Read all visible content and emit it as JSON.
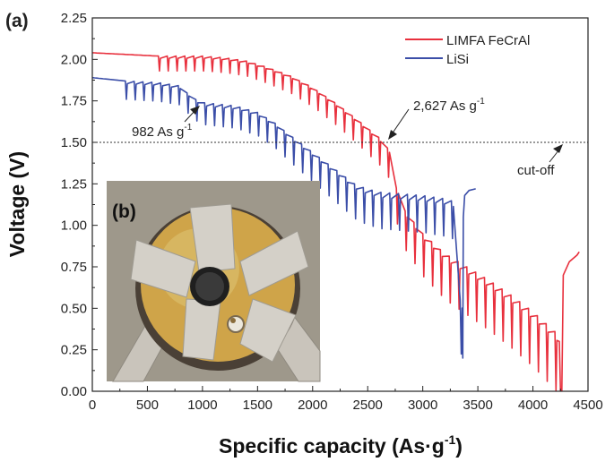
{
  "panel_labels": {
    "a": "(a)",
    "b": "(b)"
  },
  "annotations": {
    "cutoff": "cut-off",
    "lisi_capacity": "982 As g",
    "lisi_capacity_sup": "-1",
    "limfa_capacity": "2,627 As g",
    "limfa_capacity_sup": "-1"
  },
  "inset": {
    "tone": "#a9a295",
    "plate": "#cfa449",
    "mesh": "#d4d0c8"
  },
  "chart_data": {
    "type": "line",
    "title": "",
    "xlabel": "Specific capacity (As·g",
    "xlabel_sup": "-1",
    "xlabel_close": ")",
    "ylabel": "Voltage (V)",
    "xlim": [
      0,
      4500
    ],
    "ylim": [
      0,
      2.25
    ],
    "xticks": [
      "0",
      "500",
      "1000",
      "1500",
      "2000",
      "2500",
      "3000",
      "3500",
      "4000",
      "4500"
    ],
    "yticks": [
      "0.00",
      "0.25",
      "0.50",
      "0.75",
      "1.00",
      "1.25",
      "1.50",
      "1.75",
      "2.00",
      "2.25"
    ],
    "cutoff_voltage": 1.5,
    "legend_position": "top-right",
    "series": [
      {
        "name": "LIMFA FeCrAl",
        "color": "#e8303d",
        "pulse_start": 600,
        "pulse_period": 80,
        "pulse_amplitude": 0.09,
        "baseline": [
          [
            0,
            2.04
          ],
          [
            300,
            2.03
          ],
          [
            600,
            2.02
          ],
          [
            1000,
            2.02
          ],
          [
            1200,
            2.01
          ],
          [
            1400,
            1.99
          ],
          [
            1600,
            1.95
          ],
          [
            1800,
            1.9
          ],
          [
            2000,
            1.83
          ],
          [
            2200,
            1.74
          ],
          [
            2400,
            1.64
          ],
          [
            2600,
            1.53
          ],
          [
            2700,
            1.45
          ],
          [
            2750,
            1.25
          ],
          [
            2800,
            1.12
          ],
          [
            3000,
            0.95
          ],
          [
            3200,
            0.83
          ],
          [
            3400,
            0.75
          ],
          [
            3600,
            0.67
          ],
          [
            3800,
            0.58
          ],
          [
            4000,
            0.48
          ],
          [
            4200,
            0.36
          ],
          [
            4240,
            0.3
          ]
        ],
        "tail": [
          [
            4240,
            0.3
          ],
          [
            4250,
            0.0
          ],
          [
            4262,
            0.0
          ],
          [
            4275,
            0.7
          ],
          [
            4330,
            0.78
          ],
          [
            4400,
            0.82
          ],
          [
            4420,
            0.84
          ]
        ]
      },
      {
        "name": "LiSi",
        "color": "#3b4ea8",
        "pulse_start": 300,
        "pulse_period": 80,
        "pulse_amplitude": 0.09,
        "baseline": [
          [
            0,
            1.89
          ],
          [
            300,
            1.87
          ],
          [
            600,
            1.86
          ],
          [
            800,
            1.84
          ],
          [
            900,
            1.77
          ],
          [
            1000,
            1.74
          ],
          [
            1300,
            1.72
          ],
          [
            1500,
            1.68
          ],
          [
            1650,
            1.62
          ],
          [
            1800,
            1.54
          ],
          [
            2000,
            1.44
          ],
          [
            2200,
            1.34
          ],
          [
            2400,
            1.24
          ],
          [
            2600,
            1.2
          ],
          [
            2800,
            1.19
          ],
          [
            3000,
            1.18
          ],
          [
            3200,
            1.16
          ],
          [
            3300,
            1.14
          ],
          [
            3330,
            0.9
          ],
          [
            3340,
            0.55
          ],
          [
            3360,
            0.4
          ]
        ],
        "tail": [
          [
            3360,
            0.4
          ],
          [
            3363,
            0.2
          ],
          [
            3368,
            1.05
          ],
          [
            3380,
            1.18
          ],
          [
            3420,
            1.21
          ],
          [
            3480,
            1.22
          ]
        ]
      }
    ]
  }
}
